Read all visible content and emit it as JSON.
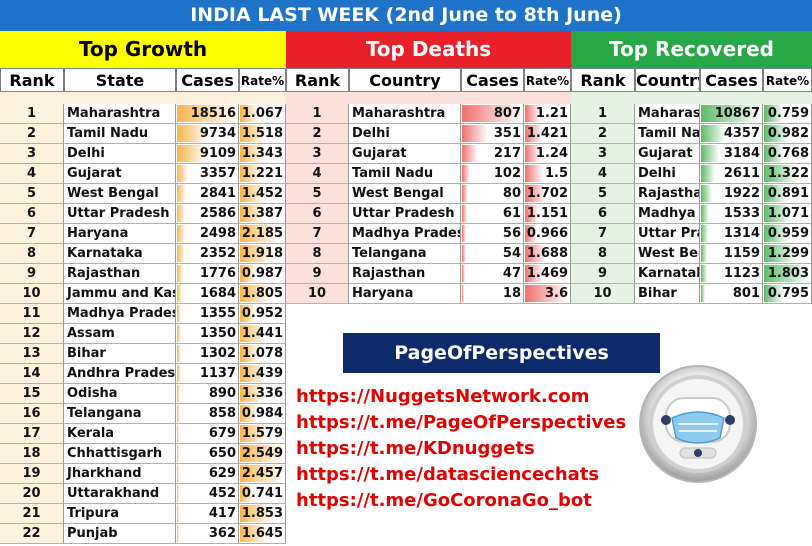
{
  "title": "INDIA LAST WEEK (2nd June to 8th June)",
  "colors": {
    "title_bg": "#1f73c8",
    "growth_header": "#ffff00",
    "deaths_header": "#e8202a",
    "recovered_header": "#27a745",
    "growth_bar": "#f7b64a",
    "deaths_bar": "#f07070",
    "recovered_bar": "#5dbb68",
    "growth_row_bg": "#fdf2dc",
    "deaths_row_bg": "#fde2dc",
    "recovered_row_bg": "#e6f2e3",
    "brand_bg": "#0d2a6b",
    "link_color": "#e00000"
  },
  "sections": [
    {
      "key": "growth",
      "title": "Top Growth",
      "headers": [
        "Rank",
        "State",
        "Cases",
        "Rate%"
      ],
      "max_cases": 18516,
      "max_rate": 2.549,
      "rows": [
        {
          "rank": "1",
          "name": "Maharashtra",
          "cases": "18516",
          "rate": "1.067"
        },
        {
          "rank": "2",
          "name": "Tamil Nadu",
          "cases": "9734",
          "rate": "1.518"
        },
        {
          "rank": "3",
          "name": "Delhi",
          "cases": "9109",
          "rate": "1.343"
        },
        {
          "rank": "4",
          "name": "Gujarat",
          "cases": "3357",
          "rate": "1.221"
        },
        {
          "rank": "5",
          "name": "West Bengal",
          "cases": "2841",
          "rate": "1.452"
        },
        {
          "rank": "6",
          "name": "Uttar Pradesh",
          "cases": "2586",
          "rate": "1.387"
        },
        {
          "rank": "7",
          "name": "Haryana",
          "cases": "2498",
          "rate": "2.185"
        },
        {
          "rank": "8",
          "name": "Karnataka",
          "cases": "2352",
          "rate": "1.918"
        },
        {
          "rank": "9",
          "name": "Rajasthan",
          "cases": "1776",
          "rate": "0.987"
        },
        {
          "rank": "10",
          "name": "Jammu and Kashmir",
          "cases": "1684",
          "rate": "1.805"
        },
        {
          "rank": "11",
          "name": "Madhya Pradesh",
          "cases": "1355",
          "rate": "0.952"
        },
        {
          "rank": "12",
          "name": "Assam",
          "cases": "1350",
          "rate": "1.441"
        },
        {
          "rank": "13",
          "name": "Bihar",
          "cases": "1302",
          "rate": "1.078"
        },
        {
          "rank": "14",
          "name": "Andhra Pradesh",
          "cases": "1137",
          "rate": "1.439"
        },
        {
          "rank": "15",
          "name": "Odisha",
          "cases": "890",
          "rate": "1.336"
        },
        {
          "rank": "16",
          "name": "Telangana",
          "cases": "858",
          "rate": "0.984"
        },
        {
          "rank": "17",
          "name": "Kerala",
          "cases": "679",
          "rate": "1.579"
        },
        {
          "rank": "18",
          "name": "Chhattisgarh",
          "cases": "650",
          "rate": "2.549"
        },
        {
          "rank": "19",
          "name": "Jharkhand",
          "cases": "629",
          "rate": "2.457"
        },
        {
          "rank": "20",
          "name": "Uttarakhand",
          "cases": "452",
          "rate": "0.741"
        },
        {
          "rank": "21",
          "name": "Tripura",
          "cases": "417",
          "rate": "1.853"
        },
        {
          "rank": "22",
          "name": "Punjab",
          "cases": "362",
          "rate": "1.645"
        }
      ]
    },
    {
      "key": "deaths",
      "title": "Top Deaths",
      "headers": [
        "Rank",
        "Country",
        "Cases",
        "Rate%"
      ],
      "max_cases": 807,
      "max_rate": 3.6,
      "rows": [
        {
          "rank": "1",
          "name": "Maharashtra",
          "cases": "807",
          "rate": "1.21"
        },
        {
          "rank": "2",
          "name": "Delhi",
          "cases": "351",
          "rate": "1.421"
        },
        {
          "rank": "3",
          "name": "Gujarat",
          "cases": "217",
          "rate": "1.24"
        },
        {
          "rank": "4",
          "name": "Tamil Nadu",
          "cases": "102",
          "rate": "1.5"
        },
        {
          "rank": "5",
          "name": "West Bengal",
          "cases": "80",
          "rate": "1.702"
        },
        {
          "rank": "6",
          "name": "Uttar Pradesh",
          "cases": "61",
          "rate": "1.151"
        },
        {
          "rank": "7",
          "name": "Madhya Pradesh",
          "cases": "56",
          "rate": "0.966"
        },
        {
          "rank": "8",
          "name": "Telangana",
          "cases": "54",
          "rate": "1.688"
        },
        {
          "rank": "9",
          "name": "Rajasthan",
          "cases": "47",
          "rate": "1.469"
        },
        {
          "rank": "10",
          "name": "Haryana",
          "cases": "18",
          "rate": "3.6"
        }
      ]
    },
    {
      "key": "recovered",
      "title": "Top Recovered",
      "headers": [
        "Rank",
        "Country",
        "Cases",
        "Rate%"
      ],
      "max_cases": 10867,
      "max_rate": 1.803,
      "rows": [
        {
          "rank": "1",
          "name": "Maharashtra",
          "cases": "10867",
          "rate": "0.759"
        },
        {
          "rank": "2",
          "name": "Tamil Nadu",
          "cases": "4357",
          "rate": "0.982"
        },
        {
          "rank": "3",
          "name": "Gujarat",
          "cases": "3184",
          "rate": "0.768"
        },
        {
          "rank": "4",
          "name": "Delhi",
          "cases": "2611",
          "rate": "1.322"
        },
        {
          "rank": "5",
          "name": "Rajasthan",
          "cases": "1922",
          "rate": "0.891"
        },
        {
          "rank": "6",
          "name": "Madhya Pradesh",
          "cases": "1533",
          "rate": "1.071"
        },
        {
          "rank": "7",
          "name": "Uttar Pradesh",
          "cases": "1314",
          "rate": "0.959"
        },
        {
          "rank": "8",
          "name": "West Bengal",
          "cases": "1159",
          "rate": "1.299"
        },
        {
          "rank": "9",
          "name": "Karnataka",
          "cases": "1123",
          "rate": "1.803"
        },
        {
          "rank": "10",
          "name": "Bihar",
          "cases": "801",
          "rate": "0.795"
        }
      ]
    }
  ],
  "brand": {
    "title": "PageOfPerspectives",
    "links": [
      "https://NuggetsNetwork.com",
      "https://t.me/PageOfPerspectives",
      "https://t.me/KDnuggets",
      "https://t.me/datasciencechats",
      "https://t.me/GoCoronaGo_bot"
    ],
    "logo_icon": "masked-robot-icon"
  }
}
